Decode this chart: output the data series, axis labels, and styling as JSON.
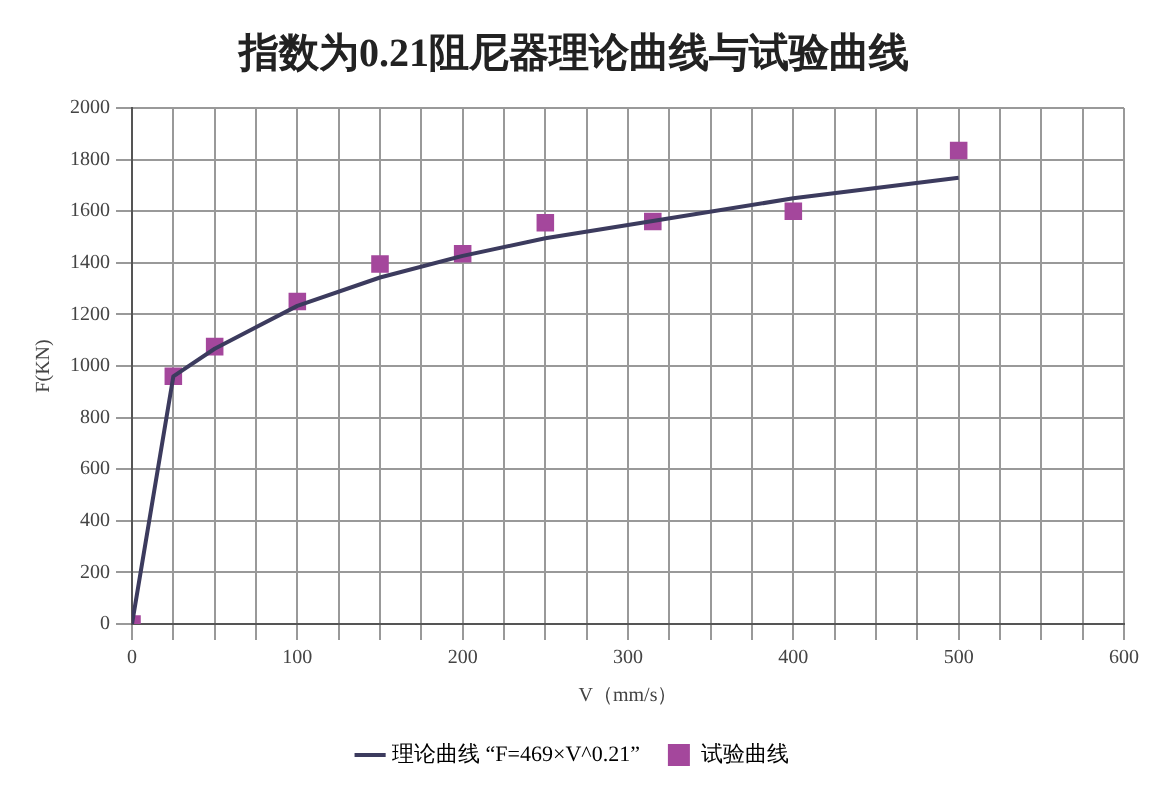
{
  "chart_data": {
    "type": "line",
    "title": "指数为0.21阻尼器理论曲线与试验曲线",
    "xlabel": "V（mm/s）",
    "ylabel": "F(KN)",
    "series": [
      {
        "name": "理论曲线 “F=469×V^0.21”",
        "type": "line",
        "color": "#3c3b5e",
        "marker": "none",
        "x": [
          0,
          25,
          50,
          100,
          150,
          200,
          250,
          315,
          400,
          500
        ],
        "values": [
          0,
          960,
          1067,
          1233,
          1343,
          1427,
          1495,
          1562,
          1650,
          1730
        ]
      },
      {
        "name": "试验曲线",
        "type": "scatter",
        "color": "#a4479c",
        "marker": "square",
        "x": [
          0,
          25,
          50,
          100,
          150,
          200,
          250,
          315,
          400,
          500
        ],
        "values": [
          0,
          960,
          1075,
          1250,
          1395,
          1435,
          1555,
          1560,
          1600,
          1835
        ]
      }
    ],
    "xlim": [
      0,
      600
    ],
    "ylim": [
      0,
      2000
    ],
    "xticks": [
      0,
      {
        "value": 25,
        "label": null
      },
      {
        "value": 50,
        "label": null
      },
      {
        "value": 75,
        "label": null
      },
      100,
      {
        "value": 125,
        "label": null
      },
      {
        "value": 150,
        "label": null
      },
      {
        "value": 175,
        "label": null
      },
      200,
      {
        "value": 225,
        "label": null
      },
      {
        "value": 250,
        "label": null
      },
      {
        "value": 275,
        "label": null
      },
      300,
      {
        "value": 325,
        "label": null
      },
      {
        "value": 350,
        "label": null
      },
      {
        "value": 375,
        "label": null
      },
      400,
      {
        "value": 425,
        "label": null
      },
      {
        "value": 450,
        "label": null
      },
      {
        "value": 475,
        "label": null
      },
      500,
      {
        "value": 525,
        "label": null
      },
      {
        "value": 550,
        "label": null
      },
      {
        "value": 575,
        "label": null
      },
      600
    ],
    "yticks": [
      0,
      200,
      400,
      600,
      800,
      1000,
      1200,
      1400,
      1600,
      1800,
      2000
    ],
    "grid": true,
    "legend": "bottom"
  }
}
